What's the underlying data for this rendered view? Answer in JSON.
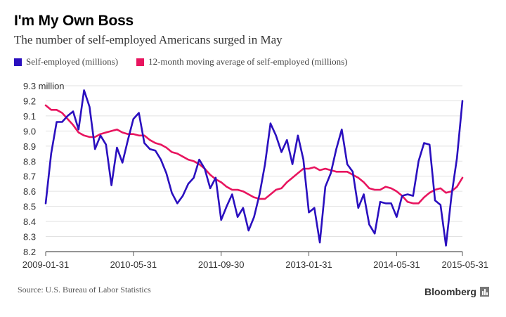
{
  "header": {
    "title": "I'm My Own Boss",
    "subtitle": "The number of self-employed Americans surged in May"
  },
  "footer": {
    "source": "Source: U.S. Bureau of Labor Statistics",
    "brand": "Bloomberg",
    "brand_icon": "bar-chart-icon"
  },
  "colors": {
    "series_1": "#2a0fbf",
    "series_2": "#e8155f",
    "grid": "#e2e2e2",
    "axis": "#555555"
  },
  "chart_data": {
    "type": "line",
    "title": "I'm My Own Boss",
    "subtitle": "The number of self-employed Americans surged in May",
    "xlabel": "",
    "ylabel": "",
    "ylim": [
      8.2,
      9.3
    ],
    "grid": true,
    "legend_position": "top-left",
    "yticks": [
      {
        "value": 9.3,
        "label": "9.3 million"
      },
      {
        "value": 9.2,
        "label": "9.2"
      },
      {
        "value": 9.1,
        "label": "9.1"
      },
      {
        "value": 9.0,
        "label": "9.0"
      },
      {
        "value": 8.9,
        "label": "8.9"
      },
      {
        "value": 8.8,
        "label": "8.8"
      },
      {
        "value": 8.7,
        "label": "8.7"
      },
      {
        "value": 8.6,
        "label": "8.6"
      },
      {
        "value": 8.5,
        "label": "8.5"
      },
      {
        "value": 8.4,
        "label": "8.4"
      },
      {
        "value": 8.3,
        "label": "8.3"
      },
      {
        "value": 8.2,
        "label": "8.2"
      }
    ],
    "xticks": [
      {
        "index": 0,
        "label": "2009-01-31"
      },
      {
        "index": 16,
        "label": "2010-05-31"
      },
      {
        "index": 32,
        "label": "2011-09-30"
      },
      {
        "index": 48,
        "label": "2013-01-31"
      },
      {
        "index": 64,
        "label": "2014-05-31"
      },
      {
        "index": 76,
        "label": "2015-05-31"
      }
    ],
    "x_start": "2009-01-31",
    "x_end": "2015-05-31",
    "x_frequency": "monthly",
    "series": [
      {
        "name": "Self-employed (millions)",
        "values": [
          8.52,
          8.85,
          9.06,
          9.06,
          9.1,
          9.13,
          9.01,
          9.27,
          9.16,
          8.88,
          8.97,
          8.91,
          8.64,
          8.89,
          8.79,
          8.94,
          9.08,
          9.12,
          8.92,
          8.88,
          8.87,
          8.81,
          8.72,
          8.59,
          8.52,
          8.57,
          8.65,
          8.69,
          8.81,
          8.75,
          8.62,
          8.69,
          8.41,
          8.5,
          8.58,
          8.43,
          8.49,
          8.34,
          8.43,
          8.58,
          8.78,
          9.05,
          8.97,
          8.86,
          8.94,
          8.78,
          8.97,
          8.81,
          8.46,
          8.49,
          8.26,
          8.63,
          8.72,
          8.88,
          9.01,
          8.78,
          8.73,
          8.49,
          8.58,
          8.38,
          8.32,
          8.53,
          8.52,
          8.52,
          8.43,
          8.57,
          8.58,
          8.57,
          8.8,
          8.92,
          8.91,
          8.54,
          8.51,
          8.24,
          8.57,
          8.82,
          9.2
        ]
      },
      {
        "name": "12-month moving average of self-employed (millions)",
        "values": [
          9.17,
          9.14,
          9.14,
          9.12,
          9.08,
          9.04,
          8.99,
          8.97,
          8.96,
          8.96,
          8.98,
          8.99,
          9.0,
          9.01,
          8.99,
          8.98,
          8.98,
          8.97,
          8.97,
          8.94,
          8.92,
          8.91,
          8.89,
          8.86,
          8.85,
          8.83,
          8.81,
          8.8,
          8.78,
          8.75,
          8.71,
          8.68,
          8.66,
          8.63,
          8.61,
          8.61,
          8.6,
          8.58,
          8.56,
          8.55,
          8.55,
          8.58,
          8.61,
          8.62,
          8.66,
          8.69,
          8.72,
          8.75,
          8.75,
          8.76,
          8.74,
          8.75,
          8.74,
          8.73,
          8.73,
          8.73,
          8.71,
          8.69,
          8.66,
          8.62,
          8.61,
          8.61,
          8.63,
          8.62,
          8.6,
          8.57,
          8.53,
          8.52,
          8.52,
          8.56,
          8.59,
          8.61,
          8.62,
          8.59,
          8.6,
          8.63,
          8.69
        ]
      }
    ]
  }
}
